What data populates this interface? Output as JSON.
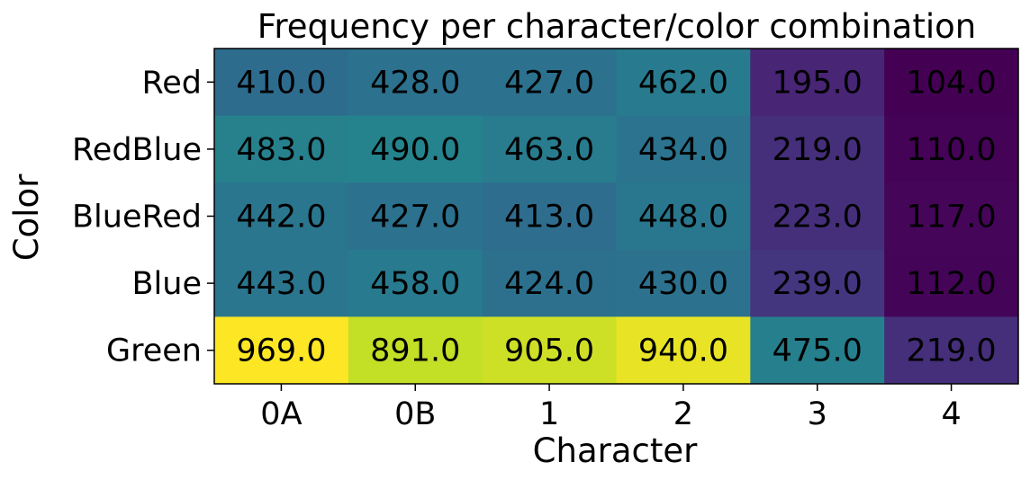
{
  "chart_data": {
    "type": "heatmap",
    "title": "Frequency per character/color combination",
    "xlabel": "Character",
    "ylabel": "Color",
    "x_categories": [
      "0A",
      "0B",
      "1",
      "2",
      "3",
      "4"
    ],
    "y_categories": [
      "Red",
      "RedBlue",
      "BlueRed",
      "Blue",
      "Green"
    ],
    "values": [
      [
        410.0,
        428.0,
        427.0,
        462.0,
        195.0,
        104.0
      ],
      [
        483.0,
        490.0,
        463.0,
        434.0,
        219.0,
        110.0
      ],
      [
        442.0,
        427.0,
        413.0,
        448.0,
        223.0,
        117.0
      ],
      [
        443.0,
        458.0,
        424.0,
        430.0,
        239.0,
        112.0
      ],
      [
        969.0,
        891.0,
        905.0,
        940.0,
        475.0,
        219.0
      ]
    ],
    "cell_labels": [
      [
        "410.0",
        "428.0",
        "427.0",
        "462.0",
        "195.0",
        "104.0"
      ],
      [
        "483.0",
        "490.0",
        "463.0",
        "434.0",
        "219.0",
        "110.0"
      ],
      [
        "442.0",
        "427.0",
        "413.0",
        "448.0",
        "223.0",
        "117.0"
      ],
      [
        "443.0",
        "458.0",
        "424.0",
        "430.0",
        "239.0",
        "112.0"
      ],
      [
        "969.0",
        "891.0",
        "905.0",
        "940.0",
        "475.0",
        "219.0"
      ]
    ],
    "colormap": "viridis",
    "color_range": [
      104.0,
      969.0
    ],
    "grid": false,
    "legend": "none"
  }
}
